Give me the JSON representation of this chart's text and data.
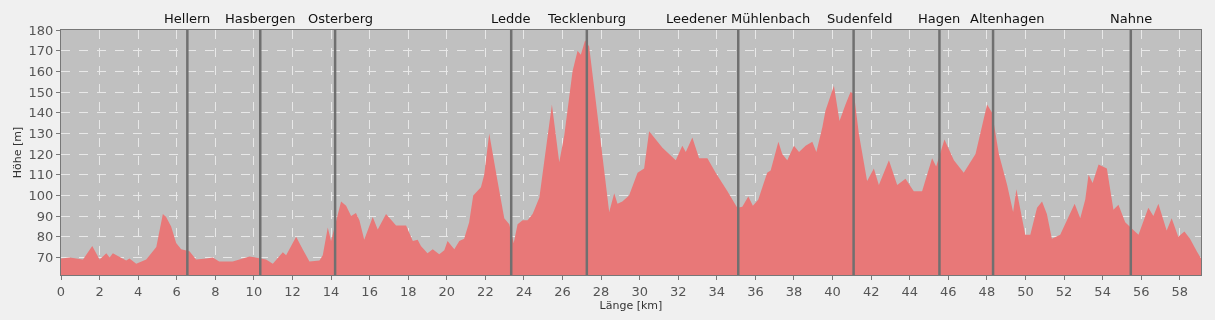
{
  "chart_data": {
    "type": "area",
    "xlabel": "Länge [km]",
    "ylabel": "Höhe [m]",
    "x": [
      0,
      0.45,
      1.14,
      1.62,
      2.0,
      2.35,
      2.52,
      2.69,
      3.38,
      3.55,
      3.9,
      4.42,
      4.94,
      5.28,
      5.45,
      5.71,
      5.97,
      6.23,
      6.66,
      7.0,
      7.53,
      7.87,
      8.2,
      8.9,
      9.77,
      10.63,
      10.98,
      11.5,
      11.67,
      12.19,
      12.53,
      12.88,
      13.4,
      13.57,
      13.83,
      14.0,
      14.52,
      14.78,
      15.04,
      15.29,
      15.47,
      15.72,
      16.16,
      16.42,
      16.85,
      17.37,
      17.89,
      18.24,
      18.49,
      18.66,
      19.0,
      19.27,
      19.61,
      19.87,
      20.04,
      20.39,
      20.65,
      20.9,
      21.16,
      21.37,
      21.77,
      21.94,
      22.2,
      22.63,
      22.98,
      23.24,
      23.47,
      23.67,
      23.93,
      24.19,
      24.45,
      24.8,
      25.06,
      25.45,
      25.83,
      26.09,
      26.52,
      26.78,
      26.95,
      27.17,
      27.38,
      27.81,
      28.16,
      28.42,
      28.68,
      28.85,
      29.1,
      29.45,
      29.89,
      30.23,
      30.49,
      31.18,
      31.87,
      32.21,
      32.39,
      32.73,
      33.08,
      33.51,
      33.94,
      34.55,
      35.06,
      35.32,
      35.63,
      35.87,
      36.15,
      36.61,
      36.79,
      37.19,
      37.39,
      37.65,
      38.0,
      38.26,
      38.6,
      38.95,
      39.16,
      39.47,
      39.63,
      40.07,
      40.36,
      40.67,
      40.93,
      41.11,
      41.36,
      41.79,
      42.14,
      42.4,
      42.92,
      43.35,
      43.78,
      44.21,
      44.64,
      45.16,
      45.37,
      45.8,
      46.29,
      46.8,
      47.41,
      48.01,
      48.27,
      48.62,
      49.05,
      49.36,
      49.53,
      49.99,
      50.25,
      50.6,
      50.86,
      51.11,
      51.37,
      51.8,
      52.15,
      52.55,
      52.84,
      53.1,
      53.27,
      53.48,
      53.79,
      54.22,
      54.56,
      54.82,
      55.17,
      55.51,
      55.86,
      56.37,
      56.63,
      56.89,
      57.32,
      57.58,
      57.92,
      58.24,
      58.53,
      58.88,
      59.1
    ],
    "values": [
      69.5,
      70,
      69,
      75.5,
      69,
      72,
      70,
      72,
      68.5,
      69.5,
      67,
      69,
      75,
      91,
      89.5,
      85,
      77,
      74,
      73,
      69,
      69.5,
      70,
      68,
      68,
      70.5,
      69,
      67,
      72.5,
      71,
      80,
      74,
      68,
      68.5,
      71,
      84.5,
      78,
      97,
      95,
      90,
      91.5,
      88,
      78.5,
      89.5,
      83.5,
      91,
      85.5,
      85.5,
      78,
      78.5,
      75.5,
      72,
      74,
      71.5,
      73.5,
      78,
      74,
      78,
      79,
      87,
      100,
      104,
      110,
      130,
      107,
      89,
      86,
      77,
      86,
      88,
      88,
      91,
      99,
      117,
      144,
      116,
      129,
      160,
      170,
      168,
      175,
      172,
      139,
      112,
      92,
      101,
      96,
      97,
      100,
      111,
      113,
      131,
      123,
      117,
      124,
      121,
      128,
      118,
      118,
      111,
      102,
      94,
      94.5,
      99.5,
      95,
      98,
      111,
      112,
      126,
      120,
      117,
      124,
      121,
      124,
      126,
      121,
      133,
      141,
      153,
      136,
      144,
      150,
      149,
      130,
      107,
      113,
      105,
      117,
      105,
      108,
      102,
      102,
      118,
      114,
      127,
      117,
      111,
      120,
      144,
      140,
      120,
      105,
      92,
      103,
      81,
      81,
      94,
      97,
      91,
      79,
      81,
      88,
      96,
      89,
      98,
      110,
      106,
      115,
      113,
      93,
      95.5,
      87,
      84,
      81,
      94,
      90,
      96,
      83,
      89,
      80,
      82.5,
      79,
      73,
      69.5
    ],
    "color": "#e87878",
    "xlim": [
      0,
      59.1
    ],
    "ylim": [
      61.5,
      180
    ],
    "xticks": [
      0,
      2,
      4,
      6,
      8,
      10,
      12,
      14,
      16,
      18,
      20,
      22,
      24,
      26,
      28,
      30,
      32,
      34,
      36,
      38,
      40,
      42,
      44,
      46,
      48,
      50,
      52,
      54,
      56,
      58
    ],
    "yticks": [
      70,
      80,
      90,
      100,
      110,
      120,
      130,
      140,
      150,
      160,
      170,
      180
    ],
    "grid": true,
    "ref_lines": [
      {
        "axis": "x",
        "value": 6.55,
        "label": "Hellern",
        "color": "#707070"
      },
      {
        "axis": "x",
        "value": 10.33,
        "label": "Hasbergen",
        "color": "#707070"
      },
      {
        "axis": "x",
        "value": 14.21,
        "label": "Osterberg",
        "color": "#707070"
      },
      {
        "axis": "x",
        "value": 23.34,
        "label": "Ledde",
        "color": "#707070"
      },
      {
        "axis": "x",
        "value": 27.26,
        "label": "Tecklenburg",
        "color": "#707070"
      },
      {
        "axis": "x",
        "value": 35.11,
        "label": "Leedener Mühlenbach",
        "color": "#707070"
      },
      {
        "axis": "x",
        "value": 41.09,
        "label": "Sudenfeld",
        "color": "#707070"
      },
      {
        "axis": "x",
        "value": 45.54,
        "label": "Hagen",
        "color": "#707070"
      },
      {
        "axis": "x",
        "value": 48.32,
        "label": "Altenhagen",
        "color": "#707070"
      },
      {
        "axis": "x",
        "value": 55.46,
        "label": "Nahne",
        "color": "#707070"
      }
    ]
  }
}
